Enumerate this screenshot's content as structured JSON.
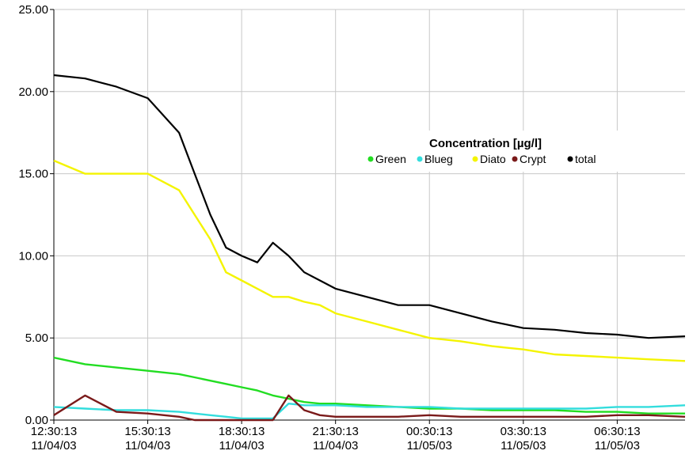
{
  "chart_data": {
    "type": "line",
    "title": "",
    "xlabel": "",
    "ylabel": "",
    "ylim": [
      0,
      25
    ],
    "y_ticks": [
      "0.00",
      "5.00",
      "10.00",
      "15.00",
      "20.00",
      "25.00"
    ],
    "x_range": [
      "12:30:13 11/04/03",
      "08:40:13 11/05/03"
    ],
    "x_ticks": [
      {
        "time": "12:30:13",
        "date": "11/04/03"
      },
      {
        "time": "15:30:13",
        "date": "11/04/03"
      },
      {
        "time": "18:30:13",
        "date": "11/04/03"
      },
      {
        "time": "21:30:13",
        "date": "11/04/03"
      },
      {
        "time": "00:30:13",
        "date": "11/05/03"
      },
      {
        "time": "03:30:13",
        "date": "11/05/03"
      },
      {
        "time": "06:30:13",
        "date": "11/05/03"
      }
    ],
    "grid": true,
    "legend": {
      "title": "Concentration [µg/l]",
      "position": "center-right"
    },
    "x": [
      "12:30",
      "13:30",
      "14:30",
      "15:30",
      "16:30",
      "17:00",
      "17:30",
      "18:00",
      "18:30",
      "19:00",
      "19:30",
      "20:00",
      "20:30",
      "21:00",
      "21:30",
      "22:30",
      "23:30",
      "00:30",
      "01:30",
      "02:30",
      "03:30",
      "04:30",
      "05:30",
      "06:30",
      "07:30",
      "08:40"
    ],
    "series": [
      {
        "name": "Green",
        "color": "#22dd22",
        "values": [
          3.8,
          3.4,
          3.2,
          3.0,
          2.8,
          2.6,
          2.4,
          2.2,
          2.0,
          1.8,
          1.5,
          1.3,
          1.1,
          1.0,
          1.0,
          0.9,
          0.8,
          0.7,
          0.7,
          0.6,
          0.6,
          0.6,
          0.5,
          0.5,
          0.4,
          0.4
        ]
      },
      {
        "name": "Blueg",
        "color": "#33dddd",
        "values": [
          0.8,
          0.7,
          0.6,
          0.6,
          0.5,
          0.4,
          0.3,
          0.2,
          0.1,
          0.1,
          0.1,
          1.0,
          0.9,
          0.9,
          0.9,
          0.8,
          0.8,
          0.8,
          0.7,
          0.7,
          0.7,
          0.7,
          0.7,
          0.8,
          0.8,
          0.9
        ]
      },
      {
        "name": "Diato",
        "color": "#f4f400",
        "values": [
          15.8,
          15.0,
          15.0,
          15.0,
          14.0,
          12.5,
          11.0,
          9.0,
          8.5,
          8.0,
          7.5,
          7.5,
          7.2,
          7.0,
          6.5,
          6.0,
          5.5,
          5.0,
          4.8,
          4.5,
          4.3,
          4.0,
          3.9,
          3.8,
          3.7,
          3.6
        ]
      },
      {
        "name": "Crypt",
        "color": "#7a1a1a",
        "values": [
          0.3,
          1.5,
          0.5,
          0.4,
          0.2,
          0.0,
          0.0,
          0.0,
          0.0,
          0.0,
          0.0,
          1.5,
          0.6,
          0.3,
          0.2,
          0.2,
          0.2,
          0.3,
          0.2,
          0.2,
          0.2,
          0.2,
          0.2,
          0.3,
          0.3,
          0.2
        ]
      },
      {
        "name": "total",
        "color": "#000000",
        "values": [
          21.0,
          20.8,
          20.3,
          19.6,
          17.5,
          15.0,
          12.5,
          10.5,
          10.0,
          9.6,
          10.8,
          10.0,
          9.0,
          8.5,
          8.0,
          7.5,
          7.0,
          7.0,
          6.5,
          6.0,
          5.6,
          5.5,
          5.3,
          5.2,
          5.0,
          5.1
        ]
      }
    ]
  }
}
